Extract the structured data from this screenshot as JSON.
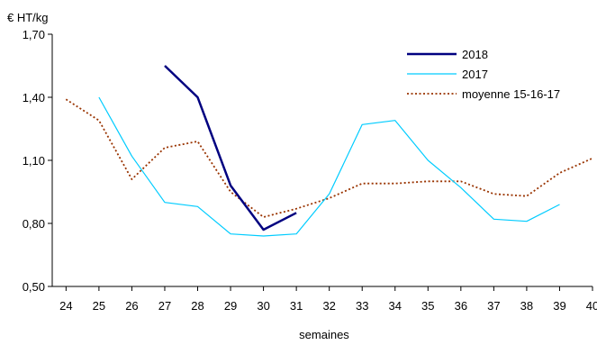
{
  "chart_data": {
    "type": "line",
    "ylabel": "€  HT/kg",
    "xlabel": "semaines",
    "categories": [
      "24",
      "25",
      "26",
      "27",
      "28",
      "29",
      "30",
      "31",
      "32",
      "33",
      "34",
      "35",
      "36",
      "37",
      "38",
      "39",
      "40"
    ],
    "ylim": [
      0.5,
      1.7
    ],
    "yticks": [
      "0,50",
      "0,80",
      "1,10",
      "1,40",
      "1,70"
    ],
    "ytick_values": [
      0.5,
      0.8,
      1.1,
      1.4,
      1.7
    ],
    "grid": false,
    "legend_position": "top-right",
    "series": [
      {
        "name": "2018",
        "color": "#000080",
        "style": "solid-thick",
        "values": [
          null,
          null,
          null,
          1.55,
          1.4,
          0.98,
          0.77,
          0.85,
          null,
          null,
          null,
          null,
          null,
          null,
          null,
          null,
          null
        ]
      },
      {
        "name": "2017",
        "color": "#00ccff",
        "style": "solid-thin",
        "values": [
          null,
          1.4,
          1.12,
          0.9,
          0.88,
          0.75,
          0.74,
          0.75,
          0.94,
          1.27,
          1.29,
          1.1,
          0.97,
          0.82,
          0.81,
          0.89,
          null
        ]
      },
      {
        "name": "moyenne 15-16-17",
        "color": "#993300",
        "style": "dotted",
        "values": [
          1.39,
          1.29,
          1.01,
          1.16,
          1.19,
          0.95,
          0.83,
          0.87,
          0.92,
          0.99,
          0.99,
          1.0,
          1.0,
          0.94,
          0.93,
          1.04,
          1.11
        ]
      }
    ]
  }
}
